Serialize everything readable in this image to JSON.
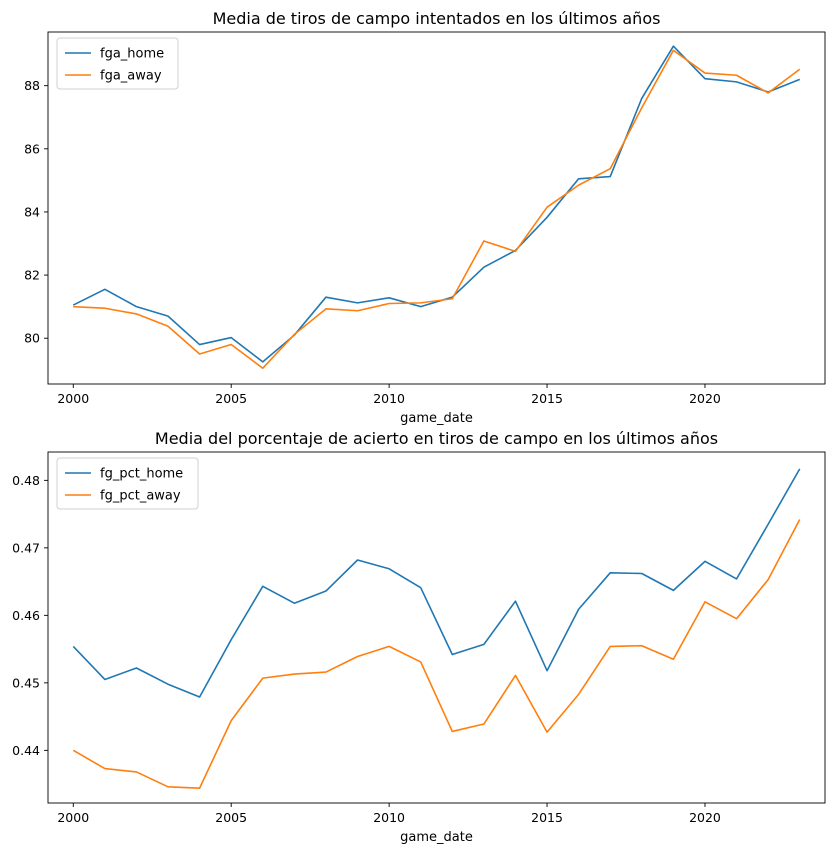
{
  "chart_data": [
    {
      "type": "line",
      "title": "Media de tiros de campo intentados en los últimos años",
      "xlabel": "game_date",
      "ylabel": "",
      "legend_position": "upper-left",
      "grid": false,
      "xlim": [
        1999.2,
        2023.8
      ],
      "ylim": [
        78.55,
        89.7
      ],
      "xticks": [
        2000,
        2005,
        2010,
        2015,
        2020
      ],
      "yticks": [
        80,
        82,
        84,
        86,
        88
      ],
      "ytick_labels": [
        "80",
        "82",
        "84",
        "86",
        "88"
      ],
      "x": [
        2000,
        2001,
        2002,
        2003,
        2004,
        2005,
        2006,
        2007,
        2008,
        2009,
        2010,
        2011,
        2012,
        2013,
        2014,
        2015,
        2016,
        2017,
        2018,
        2019,
        2020,
        2021,
        2022,
        2023
      ],
      "series": [
        {
          "name": "fga_home",
          "color": "#1f77b4",
          "values": [
            81.05,
            81.55,
            81.0,
            80.7,
            79.8,
            80.02,
            79.25,
            80.1,
            81.3,
            81.12,
            81.28,
            81.0,
            81.3,
            82.25,
            82.78,
            83.83,
            85.05,
            85.12,
            87.6,
            89.25,
            88.22,
            88.12,
            87.8,
            88.2
          ]
        },
        {
          "name": "fga_away",
          "color": "#ff7f0e",
          "values": [
            81.0,
            80.95,
            80.77,
            80.38,
            79.5,
            79.8,
            79.05,
            80.12,
            80.93,
            80.87,
            81.1,
            81.12,
            81.25,
            83.08,
            82.75,
            84.15,
            84.85,
            85.37,
            87.3,
            89.12,
            88.4,
            88.33,
            87.77,
            88.52
          ]
        }
      ]
    },
    {
      "type": "line",
      "title": "Media del porcentaje de acierto en tiros de campo en los últimos años",
      "xlabel": "game_date",
      "ylabel": "",
      "legend_position": "upper-left",
      "grid": false,
      "xlim": [
        1999.2,
        2023.8
      ],
      "ylim": [
        0.4322,
        0.4842
      ],
      "xticks": [
        2000,
        2005,
        2010,
        2015,
        2020
      ],
      "yticks": [
        0.44,
        0.45,
        0.46,
        0.47,
        0.48
      ],
      "ytick_labels": [
        "0.44",
        "0.45",
        "0.46",
        "0.47",
        "0.48"
      ],
      "x": [
        2000,
        2001,
        2002,
        2003,
        2004,
        2005,
        2006,
        2007,
        2008,
        2009,
        2010,
        2011,
        2012,
        2013,
        2014,
        2015,
        2016,
        2017,
        2018,
        2019,
        2020,
        2021,
        2022,
        2023
      ],
      "series": [
        {
          "name": "fg_pct_home",
          "color": "#1f77b4",
          "values": [
            0.4554,
            0.4505,
            0.4522,
            0.4498,
            0.4479,
            0.4564,
            0.4643,
            0.4618,
            0.4636,
            0.4682,
            0.4669,
            0.4641,
            0.4542,
            0.4557,
            0.4621,
            0.4518,
            0.4609,
            0.4663,
            0.4662,
            0.4637,
            0.468,
            0.4654,
            0.4735,
            0.4817
          ]
        },
        {
          "name": "fg_pct_away",
          "color": "#ff7f0e",
          "values": [
            0.44,
            0.4373,
            0.4368,
            0.4346,
            0.4344,
            0.4444,
            0.4507,
            0.4513,
            0.4516,
            0.4539,
            0.4554,
            0.4531,
            0.4428,
            0.4439,
            0.4511,
            0.4427,
            0.4483,
            0.4554,
            0.4555,
            0.4535,
            0.462,
            0.4595,
            0.4653,
            0.4742
          ]
        }
      ]
    }
  ]
}
